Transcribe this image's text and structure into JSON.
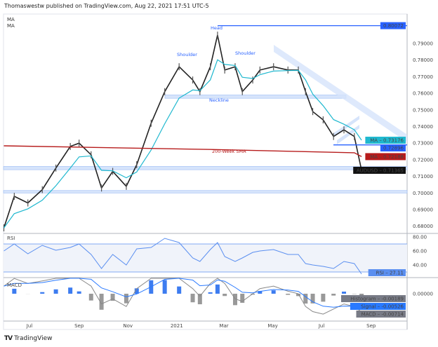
{
  "header": {
    "publisher_line": "Thomaswestw published on TradingView.com, Aug 22, 2021 17:51 UTC-5"
  },
  "footer": {
    "brand": "TradingView",
    "logo_text": "TV"
  },
  "colors": {
    "price": "#222222",
    "ma_fast": "#1fb8cf",
    "sma_200w": "#b71c1c",
    "annotation": "#2962ff",
    "zone_fill": "#d6e4fb",
    "rsi": "#5b8ff0",
    "signal": "#2979ff",
    "macd": "#888888",
    "hist_pos": "#3d7cf0",
    "hist_neg": "#999999"
  },
  "chart_data": {
    "type": "candlestick",
    "symbol": "AUDUSD",
    "legend": [
      "MA",
      "MA"
    ],
    "x_tick_labels": [
      "Jul",
      "Sep",
      "Nov",
      "2021",
      "Mar",
      "May",
      "Jul",
      "Sep"
    ],
    "x_tick_dates": [
      "2020-07-01",
      "2020-09-01",
      "2020-11-01",
      "2021-01-01",
      "2021-03-01",
      "2021-05-01",
      "2021-07-01",
      "2021-09-01"
    ],
    "xlim": [
      "2020-05-30",
      "2021-10-23"
    ],
    "ylim": [
      0.6757,
      0.8069
    ],
    "y_tick_labels": [
      "0.79000",
      "0.78000",
      "0.77000",
      "0.76000",
      "0.75000",
      "0.74000",
      "0.73000",
      "0.72000",
      "0.71000",
      "0.70000",
      "0.69000",
      "0.68000"
    ],
    "close": [
      [
        "2020-05-30",
        0.679
      ],
      [
        "2020-06-12",
        0.698
      ],
      [
        "2020-06-29",
        0.694
      ],
      [
        "2020-07-17",
        0.702
      ],
      [
        "2020-08-03",
        0.715
      ],
      [
        "2020-08-21",
        0.728
      ],
      [
        "2020-09-01",
        0.73
      ],
      [
        "2020-09-16",
        0.723
      ],
      [
        "2020-09-29",
        0.703
      ],
      [
        "2020-10-13",
        0.713
      ],
      [
        "2020-10-30",
        0.704
      ],
      [
        "2020-11-12",
        0.717
      ],
      [
        "2020-11-30",
        0.742
      ],
      [
        "2020-12-17",
        0.761
      ],
      [
        "2021-01-04",
        0.776
      ],
      [
        "2021-01-21",
        0.768
      ],
      [
        "2021-01-30",
        0.761
      ],
      [
        "2021-02-12",
        0.776
      ],
      [
        "2021-02-21",
        0.795
      ],
      [
        "2021-03-02",
        0.774
      ],
      [
        "2021-03-15",
        0.776
      ],
      [
        "2021-03-24",
        0.761
      ],
      [
        "2021-04-06",
        0.768
      ],
      [
        "2021-04-15",
        0.774
      ],
      [
        "2021-05-02",
        0.776
      ],
      [
        "2021-05-20",
        0.774
      ],
      [
        "2021-06-02",
        0.774
      ],
      [
        "2021-06-11",
        0.761
      ],
      [
        "2021-06-20",
        0.749
      ],
      [
        "2021-07-03",
        0.744
      ],
      [
        "2021-07-16",
        0.734
      ],
      [
        "2021-07-29",
        0.738
      ],
      [
        "2021-08-11",
        0.734
      ],
      [
        "2021-08-20",
        0.71365
      ]
    ],
    "sma_200_week": [
      [
        "2020-05-30",
        0.7284
      ],
      [
        "2021-02-12",
        0.7262
      ],
      [
        "2021-08-11",
        0.7242
      ],
      [
        "2021-08-20",
        0.72188
      ]
    ],
    "price_labels": [
      {
        "name": "",
        "value": "0.80072",
        "price": 0.80072,
        "color": "#2962ff"
      },
      {
        "name": "MA",
        "value": "0.73176",
        "price": 0.73176,
        "color": "#1fb8cf"
      },
      {
        "name": "",
        "value": "0.72896",
        "price": 0.72896,
        "color": "#2962ff"
      },
      {
        "name": "MA",
        "value": "0.72188",
        "price": 0.72188,
        "color": "#b71c1c"
      },
      {
        "name": "AUDUSD",
        "value": "0.71365",
        "price": 0.71365,
        "color": "#111111"
      }
    ],
    "annotations": {
      "head": "Head",
      "shoulder_left": "Shoulder",
      "shoulder_right": "Shoulder",
      "neckline": "Neckline",
      "sma_label": "200-Week SMA",
      "head_level": 0.80072,
      "support_level": 0.72896,
      "neckline_zone": [
        0.757,
        0.759
      ],
      "zone_mid": [
        0.714,
        0.716
      ],
      "zone_low": [
        0.7,
        0.7015
      ]
    },
    "rsi": {
      "title": "RSI",
      "ylim": [
        20,
        85
      ],
      "bands": [
        70,
        30
      ],
      "ticks": [
        "80.00",
        "60.00",
        "40.00"
      ],
      "last_label": "RSI",
      "last": "27.11",
      "values": [
        60,
        70,
        56,
        68,
        61,
        65,
        70,
        55,
        35,
        55,
        40,
        63,
        65,
        78,
        72,
        50,
        45,
        62,
        72,
        52,
        45,
        50,
        58,
        60,
        62,
        55,
        55,
        42,
        40,
        38,
        35,
        45,
        42,
        27.11
      ]
    },
    "macd": {
      "title": "MACD",
      "tick": "0.00000",
      "values": [
        0.003,
        0.006,
        0.004,
        0.005,
        0.007,
        0.009,
        0.008,
        0.003,
        -0.004,
        -0.002,
        -0.005,
        0.002,
        0.008,
        0.011,
        0.01,
        0.002,
        -0.001,
        0.004,
        0.009,
        0.004,
        -0.002,
        -0.003,
        0.0,
        0.002,
        0.003,
        0.001,
        0.0,
        -0.005,
        -0.007,
        -0.008,
        -0.006,
        -0.004,
        -0.005,
        -0.00714
      ],
      "labels": [
        {
          "name": "Histogram",
          "value": "-0.00189",
          "color": "#787b86"
        },
        {
          "name": "Signal",
          "value": "-0.00526",
          "color": "#2979ff"
        },
        {
          "name": "MACD",
          "value": "-0.00714",
          "color": "#787b86"
        }
      ]
    }
  }
}
